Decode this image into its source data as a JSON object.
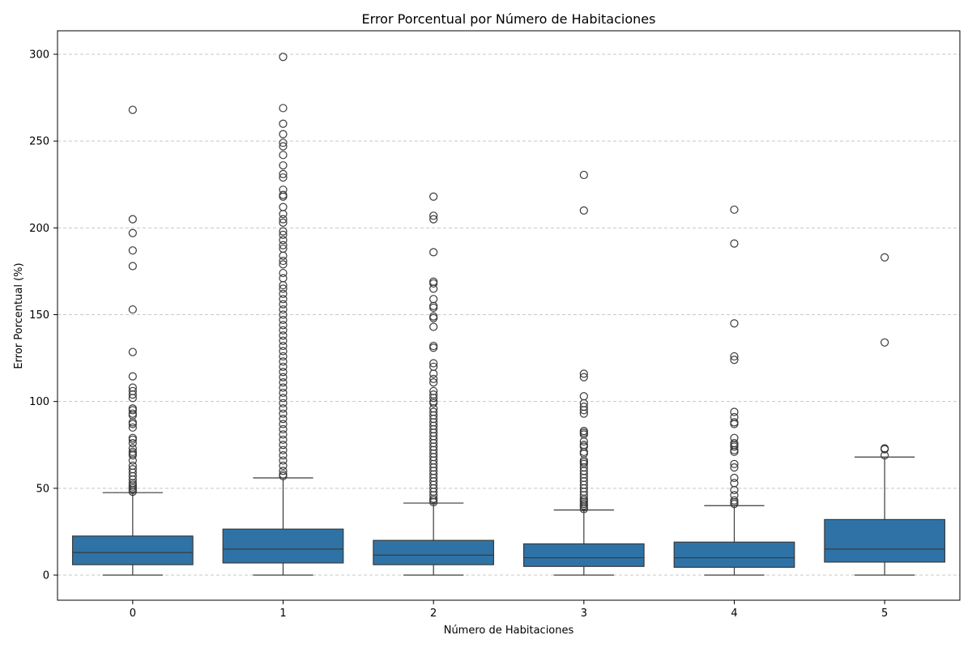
{
  "chart_data": {
    "type": "box",
    "title": "Error Porcentual por Número de Habitaciones",
    "xlabel": "Número de Habitaciones",
    "ylabel": "Error Porcentual (%)",
    "categories": [
      "0",
      "1",
      "2",
      "3",
      "4",
      "5"
    ],
    "ylim": [
      -15,
      315
    ],
    "yticks": [
      0,
      50,
      100,
      150,
      200,
      250,
      300
    ],
    "grid": "y-dashed",
    "box_color": "#2f73a6",
    "line_color": "#3a3a3a",
    "boxes": [
      {
        "category": "0",
        "whisker_low": 0,
        "q1": 6,
        "median": 13,
        "q3": 22.5,
        "whisker_high": 47.5,
        "outliers": [
          268,
          205,
          197,
          187,
          178,
          153,
          128.5,
          114.5,
          108,
          106,
          104,
          102,
          96,
          95,
          93,
          92,
          88,
          87,
          85,
          79,
          78,
          76,
          73,
          71,
          70,
          69,
          66,
          63,
          61,
          59,
          57,
          55,
          53,
          52,
          51,
          50,
          49,
          48
        ]
      },
      {
        "category": "1",
        "whisker_low": 0,
        "q1": 7,
        "median": 15,
        "q3": 26.5,
        "whisker_high": 56,
        "outliers": [
          298.5,
          269,
          260,
          254,
          249,
          247,
          242,
          236,
          231,
          229,
          222,
          219,
          218,
          212,
          208,
          205,
          203,
          198,
          196,
          193,
          190,
          188,
          184,
          181,
          179,
          174,
          171,
          167,
          165,
          162,
          159,
          156,
          153,
          150,
          147,
          144,
          141,
          138,
          135,
          132,
          129,
          126,
          123,
          120,
          117,
          114,
          111,
          108,
          105,
          102,
          99,
          96,
          93,
          90,
          87,
          84,
          81,
          78,
          75,
          72,
          69,
          66,
          63,
          60,
          58,
          57
        ]
      },
      {
        "category": "2",
        "whisker_low": 0,
        "q1": 6,
        "median": 11.5,
        "q3": 20,
        "whisker_high": 41.5,
        "outliers": [
          218,
          207,
          205,
          186,
          169,
          168,
          165,
          159,
          155,
          154,
          149,
          148,
          143,
          132,
          131,
          122,
          120,
          116,
          113,
          111,
          106,
          104,
          102,
          100,
          99,
          96,
          94,
          92,
          90,
          88,
          86,
          84,
          82,
          80,
          78,
          76,
          74,
          72,
          70,
          68,
          66,
          64,
          62,
          60,
          58,
          56,
          54,
          52,
          50,
          48,
          46,
          44,
          43,
          42
        ]
      },
      {
        "category": "3",
        "whisker_low": 0,
        "q1": 5,
        "median": 10,
        "q3": 18,
        "whisker_high": 37.5,
        "outliers": [
          230.5,
          210,
          116,
          114,
          103,
          99,
          97,
          95,
          93,
          83,
          82,
          81,
          77,
          75,
          74,
          71,
          70,
          66,
          65,
          64,
          62,
          60,
          58,
          56,
          54,
          52,
          50,
          48,
          46,
          44,
          43,
          42,
          41,
          40,
          39,
          38
        ]
      },
      {
        "category": "4",
        "whisker_low": 0,
        "q1": 4.5,
        "median": 10,
        "q3": 19,
        "whisker_high": 40,
        "outliers": [
          210.5,
          191,
          145,
          126,
          124,
          94,
          91,
          88,
          87,
          79,
          76,
          75,
          74,
          72,
          71,
          64,
          62,
          56,
          53,
          49,
          46,
          43,
          42,
          41
        ]
      },
      {
        "category": "5",
        "whisker_low": 0,
        "q1": 7.5,
        "median": 15,
        "q3": 32,
        "whisker_high": 68,
        "outliers": [
          183,
          134,
          73,
          72.5,
          69
        ]
      }
    ]
  }
}
